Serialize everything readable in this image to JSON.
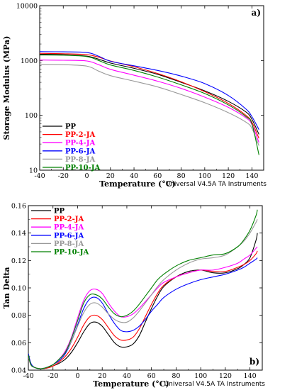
{
  "chart_data": [
    {
      "type": "line",
      "panel_label": "a)",
      "xlabel": "Temperature (°C)",
      "ylabel": "Storage Modulus (MPa)",
      "xlim": [
        -40,
        150
      ],
      "ylim": [
        10,
        10000
      ],
      "yscale": "log",
      "x_ticks": [
        -40,
        -20,
        0,
        20,
        40,
        60,
        80,
        100,
        120,
        140
      ],
      "x_tick_labels": [
        "-40",
        "-20",
        "0",
        "20",
        "40",
        "60",
        "80",
        "100",
        "120",
        "140"
      ],
      "y_ticks": [
        10,
        100,
        1000,
        10000
      ],
      "y_tick_labels": [
        "10",
        "100",
        "1000",
        "10000"
      ],
      "instrument": "Universal V4.5A TA Instruments",
      "legend_position": "bottom-left",
      "series": [
        {
          "name": "PP",
          "color": "#000000",
          "x": [
            -40,
            -20,
            0,
            10,
            20,
            40,
            60,
            80,
            100,
            120,
            135,
            140,
            146
          ],
          "y": [
            1300,
            1280,
            1200,
            1060,
            900,
            720,
            560,
            400,
            280,
            180,
            115,
            85,
            45
          ]
        },
        {
          "name": "PP-2-JA",
          "color": "#ff0000",
          "x": [
            -40,
            -20,
            0,
            10,
            20,
            40,
            60,
            80,
            100,
            120,
            135,
            140,
            146
          ],
          "y": [
            1350,
            1330,
            1280,
            1150,
            980,
            770,
            580,
            410,
            270,
            165,
            100,
            75,
            38
          ]
        },
        {
          "name": "PP-4-JA",
          "color": "#ff00ff",
          "x": [
            -40,
            -20,
            0,
            10,
            20,
            40,
            60,
            80,
            100,
            120,
            135,
            140,
            146
          ],
          "y": [
            1020,
            1010,
            980,
            840,
            690,
            540,
            420,
            310,
            215,
            140,
            90,
            68,
            32
          ]
        },
        {
          "name": "PP-6-JA",
          "color": "#0000ff",
          "x": [
            -40,
            -20,
            0,
            10,
            20,
            40,
            60,
            80,
            100,
            120,
            135,
            140,
            146
          ],
          "y": [
            1450,
            1440,
            1400,
            1200,
            970,
            800,
            660,
            520,
            380,
            230,
            130,
            95,
            55
          ]
        },
        {
          "name": "PP-8-JA",
          "color": "#999999",
          "x": [
            -40,
            -20,
            0,
            10,
            20,
            40,
            60,
            80,
            100,
            120,
            135,
            140,
            146
          ],
          "y": [
            850,
            840,
            790,
            640,
            530,
            420,
            330,
            240,
            170,
            112,
            75,
            58,
            28
          ]
        },
        {
          "name": "PP-10-JA",
          "color": "#008000",
          "x": [
            -40,
            -20,
            0,
            10,
            20,
            40,
            60,
            80,
            100,
            120,
            135,
            140,
            146
          ],
          "y": [
            1260,
            1250,
            1180,
            1000,
            830,
            660,
            500,
            360,
            250,
            155,
            95,
            70,
            19
          ]
        }
      ]
    },
    {
      "type": "line",
      "panel_label": "b)",
      "xlabel": "Temperature (°C)",
      "ylabel": "Tan Delta",
      "xlim": [
        -40,
        150
      ],
      "ylim": [
        0.04,
        0.16
      ],
      "x_ticks": [
        -40,
        -20,
        0,
        20,
        40,
        60,
        80,
        100,
        120,
        140
      ],
      "x_tick_labels": [
        "-40",
        "-20",
        "0",
        "20",
        "40",
        "60",
        "80",
        "100",
        "120",
        "140"
      ],
      "y_ticks": [
        0.04,
        0.06,
        0.08,
        0.1,
        0.12,
        0.14,
        0.16
      ],
      "y_tick_labels": [
        "0.04",
        "0.06",
        "0.08",
        "0.10",
        "0.12",
        "0.14",
        "0.16"
      ],
      "instrument": "Universal V4.5A TA Instruments",
      "legend_position": "top-left",
      "series": [
        {
          "name": "PP",
          "color": "#000000",
          "x": [
            -40,
            -38,
            -35,
            -30,
            -25,
            -20,
            -15,
            -10,
            -5,
            0,
            5,
            10,
            15,
            20,
            25,
            30,
            35,
            40,
            45,
            50,
            55,
            60,
            65,
            70,
            80,
            90,
            100,
            110,
            120,
            130,
            135,
            140,
            145,
            146
          ],
          "y": [
            0.052,
            0.045,
            0.042,
            0.041,
            0.0415,
            0.043,
            0.045,
            0.048,
            0.053,
            0.06,
            0.068,
            0.074,
            0.075,
            0.072,
            0.066,
            0.06,
            0.057,
            0.057,
            0.059,
            0.065,
            0.075,
            0.085,
            0.094,
            0.101,
            0.108,
            0.112,
            0.113,
            0.111,
            0.111,
            0.114,
            0.117,
            0.122,
            0.135,
            0.14
          ]
        },
        {
          "name": "PP-2-JA",
          "color": "#ff0000",
          "x": [
            -40,
            -38,
            -35,
            -30,
            -25,
            -20,
            -15,
            -10,
            -5,
            0,
            5,
            10,
            15,
            20,
            25,
            30,
            35,
            40,
            45,
            50,
            55,
            60,
            65,
            70,
            80,
            90,
            100,
            110,
            120,
            130,
            135,
            140,
            145,
            146
          ],
          "y": [
            0.05,
            0.044,
            0.042,
            0.041,
            0.0415,
            0.043,
            0.046,
            0.05,
            0.056,
            0.064,
            0.073,
            0.079,
            0.08,
            0.077,
            0.071,
            0.065,
            0.062,
            0.062,
            0.064,
            0.07,
            0.079,
            0.088,
            0.096,
            0.102,
            0.108,
            0.111,
            0.113,
            0.112,
            0.112,
            0.115,
            0.117,
            0.12,
            0.125,
            0.127
          ]
        },
        {
          "name": "PP-4-JA",
          "color": "#ff00ff",
          "x": [
            -40,
            -38,
            -35,
            -30,
            -25,
            -20,
            -15,
            -10,
            -5,
            0,
            5,
            10,
            15,
            20,
            25,
            30,
            35,
            40,
            45,
            50,
            55,
            60,
            65,
            70,
            80,
            90,
            100,
            110,
            120,
            130,
            135,
            140,
            145,
            146
          ],
          "y": [
            0.05,
            0.044,
            0.042,
            0.041,
            0.042,
            0.044,
            0.048,
            0.054,
            0.064,
            0.078,
            0.091,
            0.098,
            0.099,
            0.096,
            0.089,
            0.083,
            0.079,
            0.079,
            0.081,
            0.085,
            0.09,
            0.095,
            0.1,
            0.104,
            0.108,
            0.111,
            0.113,
            0.113,
            0.115,
            0.118,
            0.121,
            0.124,
            0.129,
            0.13
          ]
        },
        {
          "name": "PP-6-JA",
          "color": "#0000ff",
          "x": [
            -40,
            -38,
            -35,
            -30,
            -25,
            -20,
            -15,
            -10,
            -5,
            0,
            5,
            10,
            15,
            20,
            25,
            30,
            35,
            40,
            45,
            50,
            55,
            60,
            65,
            70,
            80,
            90,
            100,
            110,
            120,
            130,
            135,
            140,
            145,
            146
          ],
          "y": [
            0.052,
            0.045,
            0.042,
            0.041,
            0.042,
            0.044,
            0.047,
            0.052,
            0.061,
            0.073,
            0.085,
            0.092,
            0.093,
            0.089,
            0.081,
            0.074,
            0.069,
            0.068,
            0.069,
            0.072,
            0.077,
            0.083,
            0.088,
            0.093,
            0.099,
            0.103,
            0.106,
            0.108,
            0.11,
            0.113,
            0.115,
            0.118,
            0.121,
            0.122
          ]
        },
        {
          "name": "PP-8-JA",
          "color": "#999999",
          "x": [
            -40,
            -38,
            -35,
            -30,
            -25,
            -20,
            -15,
            -10,
            -5,
            0,
            5,
            10,
            15,
            20,
            25,
            30,
            35,
            40,
            45,
            50,
            55,
            60,
            65,
            70,
            80,
            90,
            100,
            110,
            120,
            130,
            135,
            140,
            145,
            146
          ],
          "y": [
            0.05,
            0.044,
            0.042,
            0.041,
            0.042,
            0.044,
            0.048,
            0.053,
            0.061,
            0.072,
            0.082,
            0.088,
            0.089,
            0.086,
            0.081,
            0.077,
            0.075,
            0.075,
            0.078,
            0.083,
            0.089,
            0.095,
            0.101,
            0.106,
            0.113,
            0.118,
            0.121,
            0.122,
            0.124,
            0.13,
            0.134,
            0.14,
            0.148,
            0.15
          ]
        },
        {
          "name": "PP-10-JA",
          "color": "#008000",
          "x": [
            -40,
            -38,
            -35,
            -30,
            -25,
            -20,
            -15,
            -10,
            -5,
            0,
            5,
            10,
            15,
            20,
            25,
            30,
            35,
            40,
            45,
            50,
            55,
            60,
            65,
            70,
            80,
            90,
            100,
            110,
            120,
            130,
            135,
            140,
            145,
            146
          ],
          "y": [
            0.051,
            0.044,
            0.042,
            0.041,
            0.042,
            0.044,
            0.048,
            0.053,
            0.063,
            0.076,
            0.089,
            0.095,
            0.095,
            0.092,
            0.086,
            0.081,
            0.079,
            0.08,
            0.083,
            0.088,
            0.094,
            0.1,
            0.106,
            0.11,
            0.116,
            0.12,
            0.122,
            0.124,
            0.125,
            0.13,
            0.135,
            0.142,
            0.153,
            0.157
          ]
        }
      ]
    }
  ]
}
